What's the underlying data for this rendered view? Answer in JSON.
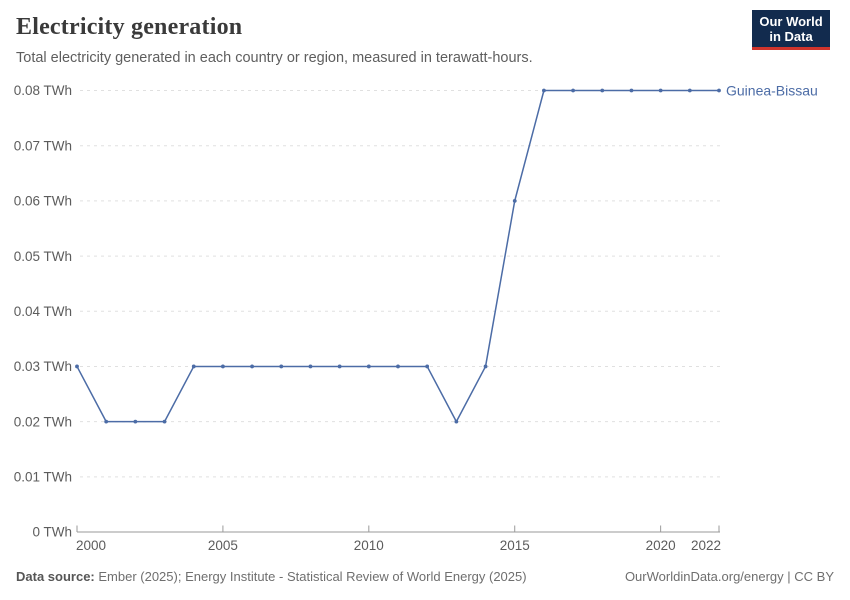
{
  "header": {
    "title": "Electricity generation",
    "subtitle": "Total electricity generated in each country or region, measured in terawatt-hours.",
    "logo": {
      "line1": "Our World",
      "line2": "in Data"
    }
  },
  "chart_data": {
    "type": "line",
    "title": "Electricity generation",
    "unit": "TWh",
    "x": [
      2000,
      2001,
      2002,
      2003,
      2004,
      2005,
      2006,
      2007,
      2008,
      2009,
      2010,
      2011,
      2012,
      2013,
      2014,
      2015,
      2016,
      2017,
      2018,
      2019,
      2020,
      2021,
      2022
    ],
    "series": [
      {
        "name": "Guinea-Bissau",
        "color": "#4c6ca6",
        "values": [
          0.03,
          0.02,
          0.02,
          0.02,
          0.03,
          0.03,
          0.03,
          0.03,
          0.03,
          0.03,
          0.03,
          0.03,
          0.03,
          0.02,
          0.03,
          0.06,
          0.08,
          0.08,
          0.08,
          0.08,
          0.08,
          0.08,
          0.08
        ]
      }
    ],
    "xlim": [
      2000,
      2022
    ],
    "ylim": [
      0,
      0.08
    ],
    "xticks": [
      {
        "value": 2000,
        "label": "2000"
      },
      {
        "value": 2005,
        "label": "2005"
      },
      {
        "value": 2010,
        "label": "2010"
      },
      {
        "value": 2015,
        "label": "2015"
      },
      {
        "value": 2020,
        "label": "2020"
      },
      {
        "value": 2022,
        "label": "2022"
      }
    ],
    "yticks": [
      {
        "value": 0,
        "label": "0 TWh"
      },
      {
        "value": 0.01,
        "label": "0.01 TWh"
      },
      {
        "value": 0.02,
        "label": "0.02 TWh"
      },
      {
        "value": 0.03,
        "label": "0.03 TWh"
      },
      {
        "value": 0.04,
        "label": "0.04 TWh"
      },
      {
        "value": 0.05,
        "label": "0.05 TWh"
      },
      {
        "value": 0.06,
        "label": "0.06 TWh"
      },
      {
        "value": 0.07,
        "label": "0.07 TWh"
      },
      {
        "value": 0.08,
        "label": "0.08 TWh"
      }
    ],
    "grid": "horizontal-dashed",
    "legend_position": "line-end-label"
  },
  "colors": {
    "line": "#4c6ca6",
    "grid": "#e0e0e0",
    "axis": "#9a9a9a",
    "tick_text": "#5c5c5c",
    "logo_bg": "#122b4e",
    "logo_red": "#d0342c"
  },
  "footer": {
    "source_label": "Data source:",
    "source_text": " Ember (2025); Energy Institute - Statistical Review of World Energy (2025)",
    "credit": "OurWorldinData.org/energy | CC BY"
  }
}
